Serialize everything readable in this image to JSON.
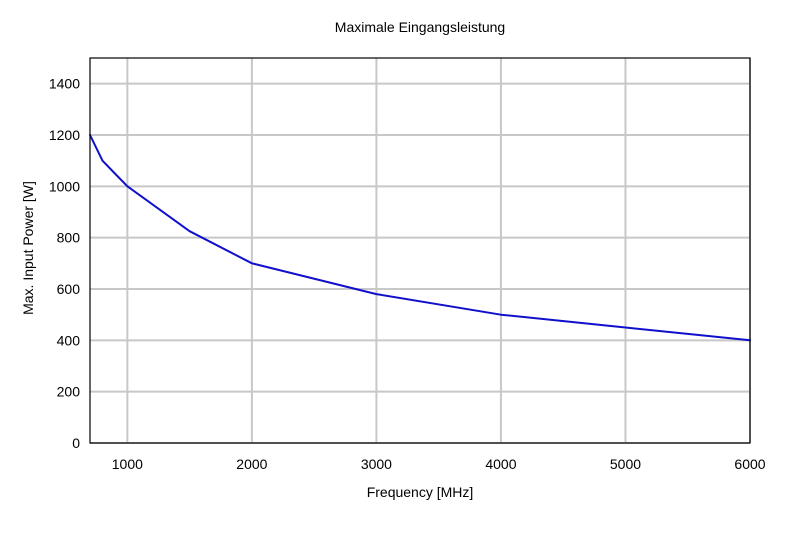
{
  "chart_data": {
    "type": "line",
    "title": "Maximale Eingangsleistung",
    "xlabel": "Frequency [MHz]",
    "ylabel": "Max. Input Power [W]",
    "xlim": [
      700,
      6000
    ],
    "ylim": [
      0,
      1500
    ],
    "xticks": [
      1000,
      2000,
      3000,
      4000,
      5000,
      6000
    ],
    "yticks": [
      0,
      200,
      400,
      600,
      800,
      1000,
      1200,
      1400
    ],
    "grid": true,
    "series": [
      {
        "color": "#1010cc",
        "x": [
          700,
          800,
          900,
          1000,
          1500,
          2000,
          3000,
          4000,
          5000,
          6000
        ],
        "y": [
          1200,
          1100,
          1050,
          1000,
          825,
          700,
          580,
          500,
          450,
          400
        ]
      }
    ]
  }
}
